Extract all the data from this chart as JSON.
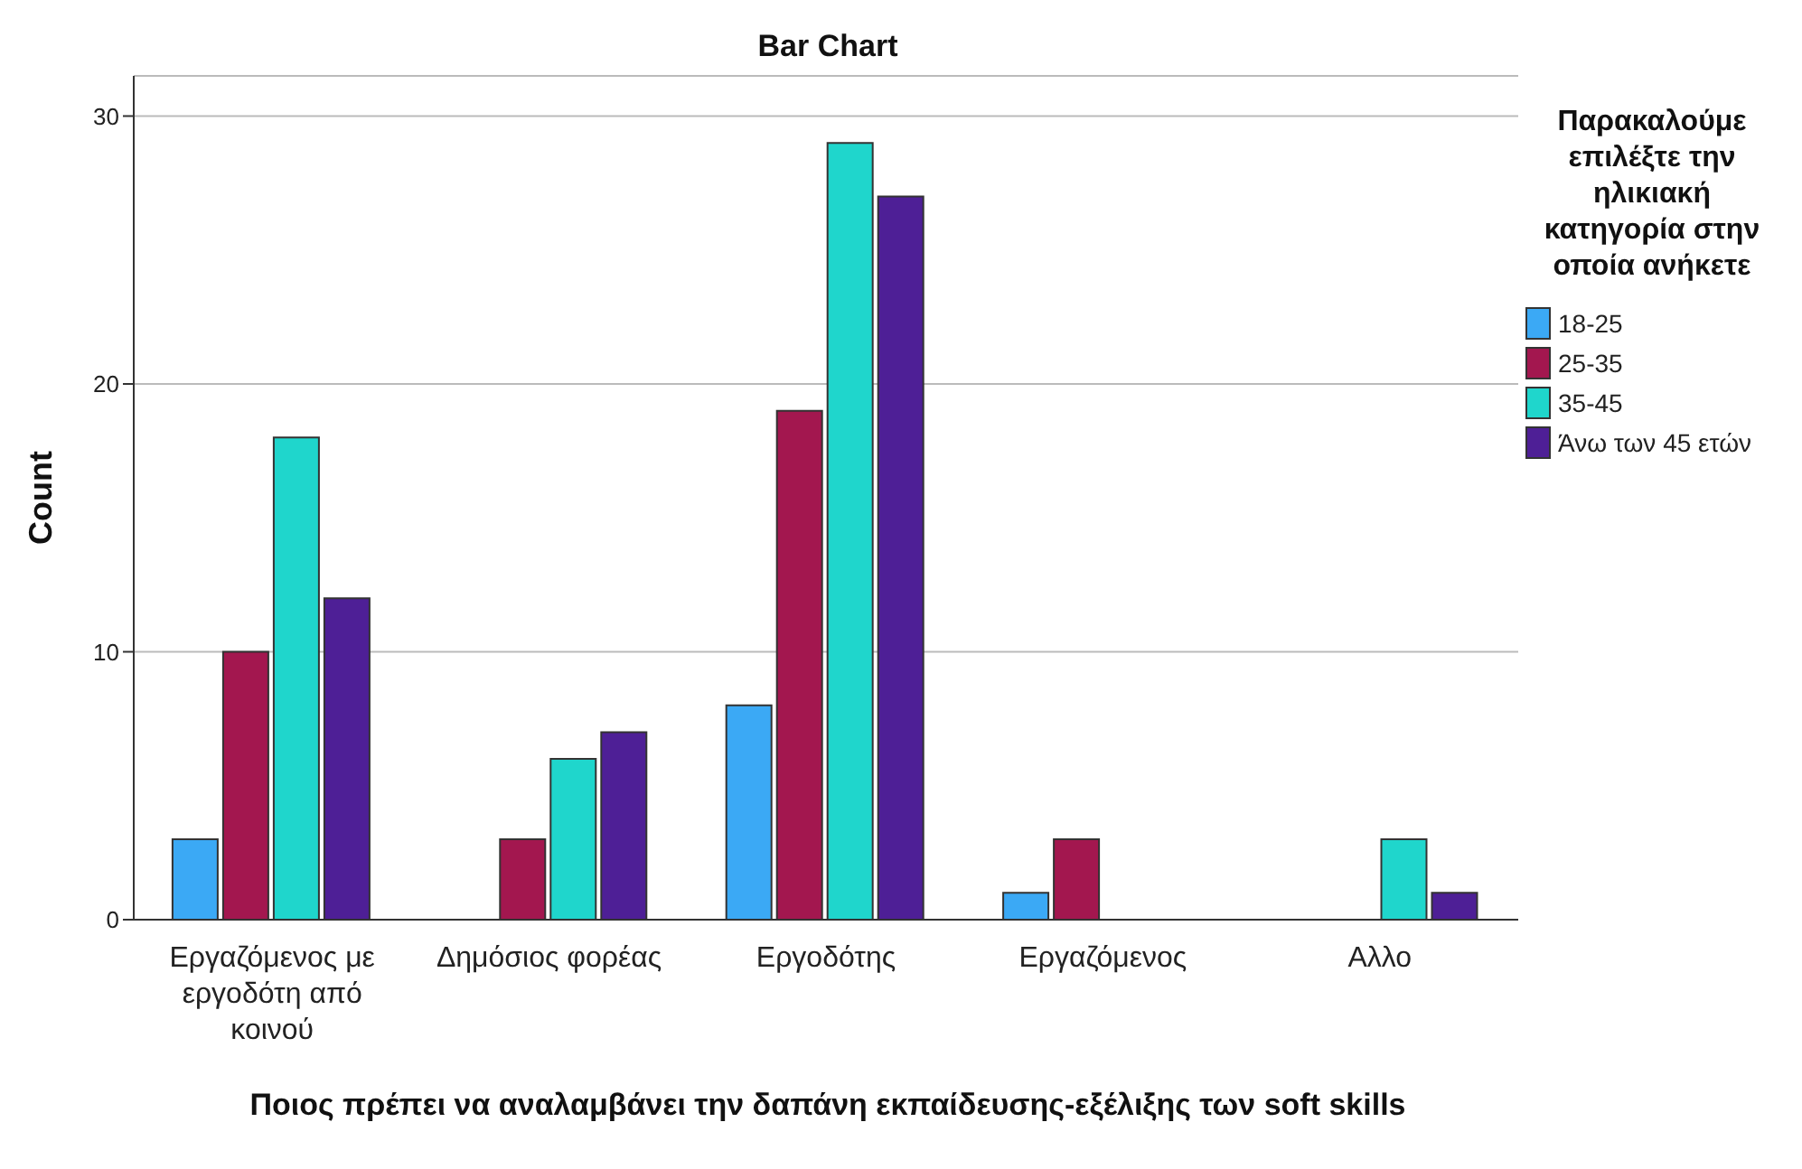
{
  "chart_data": {
    "type": "bar",
    "title": "Bar Chart",
    "xlabel": "Ποιος πρέπει να αναλαμβάνει την δαπάνη εκπαίδευσης-εξέλιξης των soft skills",
    "ylabel": "Count",
    "legend_title": "Παρακαλούμε επιλέξτε την ηλικιακή κατηγορία στην οποία ανήκετε",
    "categories": [
      "Εργαζόμενος με εργοδότη από κοινού",
      "Δημόσιος φορέας",
      "Εργοδότης",
      "Εργαζόμενος",
      "Αλλο"
    ],
    "series": [
      {
        "name": "18-25",
        "color": "#3ba9f5",
        "values": [
          3,
          null,
          8,
          1,
          null
        ]
      },
      {
        "name": "25-35",
        "color": "#a3174f",
        "values": [
          10,
          3,
          19,
          3,
          null
        ]
      },
      {
        "name": "35-45",
        "color": "#1fd6cc",
        "values": [
          18,
          6,
          29,
          null,
          3
        ]
      },
      {
        "name": "Άνω των 45 ετών",
        "color": "#4e1f96",
        "values": [
          12,
          7,
          27,
          null,
          1
        ]
      }
    ],
    "ylim": [
      0,
      31.5
    ],
    "yticks": [
      0,
      10,
      20,
      30
    ],
    "grid": "y",
    "legend": "right"
  }
}
